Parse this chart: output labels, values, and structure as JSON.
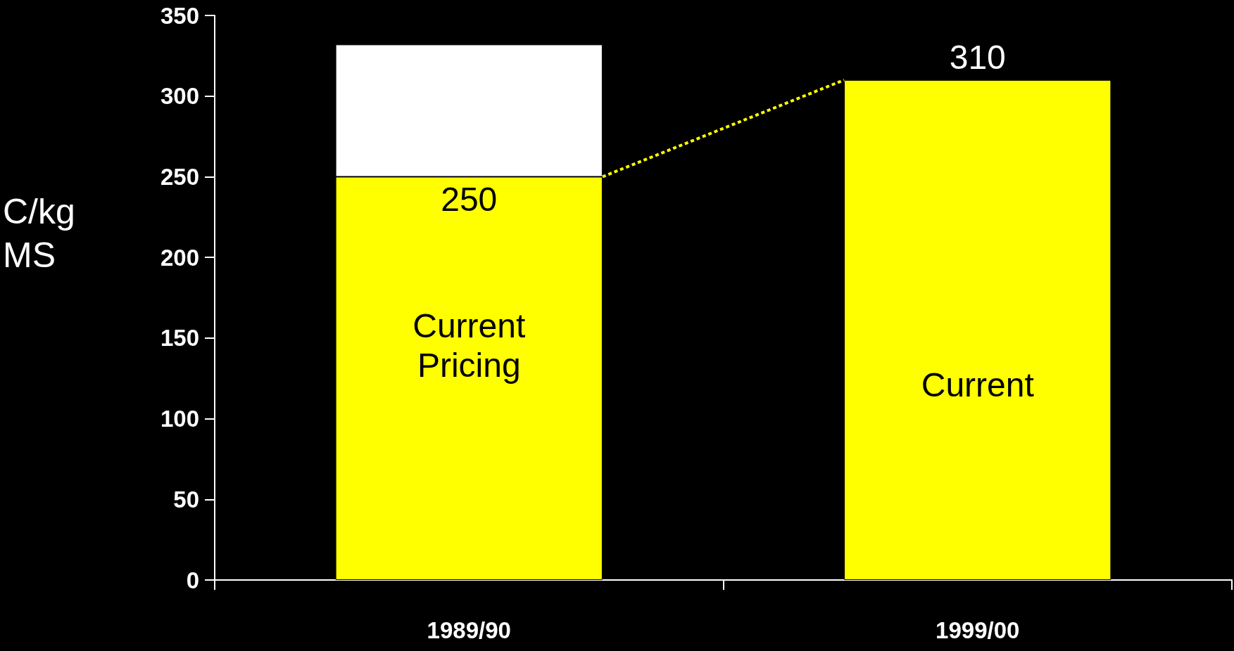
{
  "chart_data": {
    "type": "bar",
    "ylabel": "C/kg\nMS",
    "categories": [
      "1989/90",
      "1999/00"
    ],
    "series": [
      {
        "color": "#ffff00",
        "values": [
          250,
          310
        ],
        "value_labels": [
          "250",
          "310"
        ]
      },
      {
        "color": "#ffffff",
        "values": [
          82,
          null
        ]
      }
    ],
    "stacked": true,
    "ylim": [
      0,
      350
    ],
    "yticks": [
      0,
      50,
      100,
      150,
      200,
      250,
      300,
      350
    ],
    "grid": false,
    "annotations": [
      "Current\nPricing",
      "Current"
    ]
  }
}
